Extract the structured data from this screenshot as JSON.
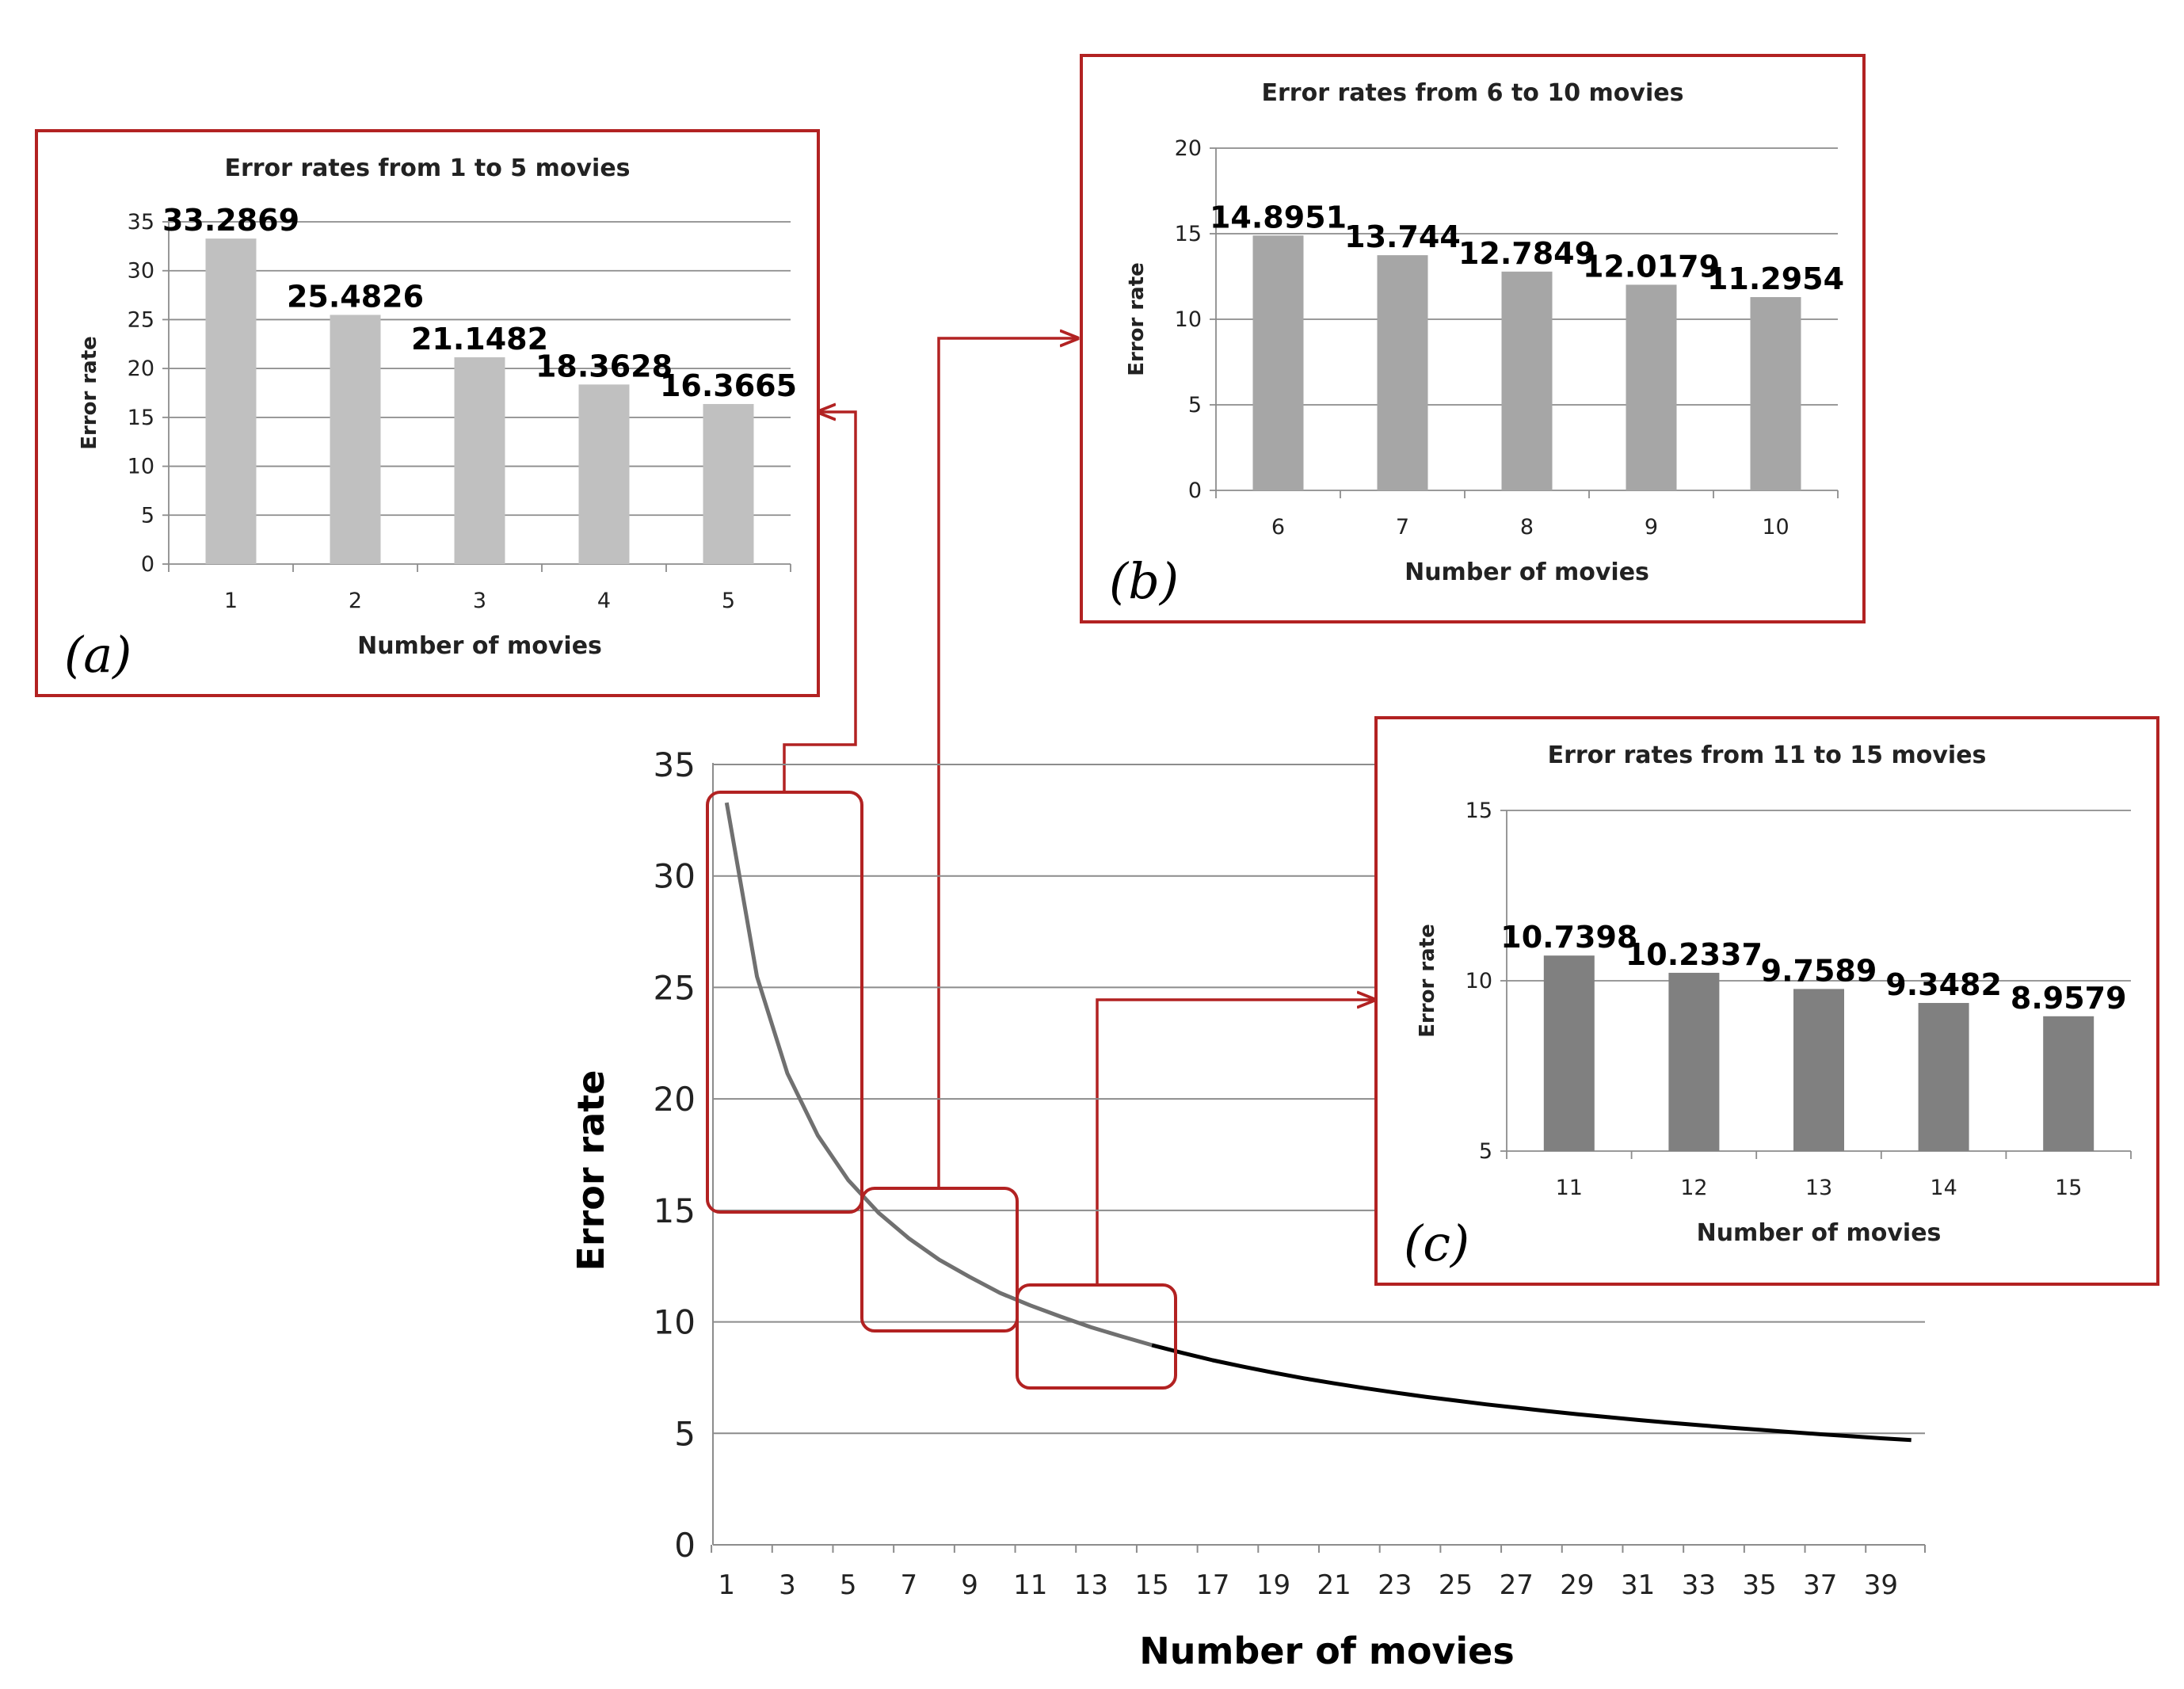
{
  "colors": {
    "frame": "#b22222",
    "bar_a": "#c0c0c0",
    "bar_b": "#a6a6a6",
    "bar_c": "#808080",
    "curve": "#000000",
    "grid": "#8c8c8c"
  },
  "chart_data": [
    {
      "id": "main",
      "type": "line",
      "title": "",
      "xlabel": "Number of movies",
      "ylabel": "Error rate",
      "ylim": [
        0,
        35
      ],
      "yticks": [
        0,
        5,
        10,
        15,
        20,
        25,
        30,
        35
      ],
      "xticks": [
        1,
        3,
        5,
        7,
        9,
        11,
        13,
        15,
        17,
        19,
        21,
        23,
        25,
        27,
        29,
        31,
        33,
        35,
        37,
        39
      ],
      "x": [
        1,
        2,
        3,
        4,
        5,
        6,
        7,
        8,
        9,
        10,
        11,
        12,
        13,
        14,
        15,
        16,
        17,
        18,
        19,
        20,
        21,
        22,
        23,
        24,
        25,
        26,
        27,
        28,
        29,
        30,
        31,
        32,
        33,
        34,
        35,
        36,
        37,
        38,
        39,
        40
      ],
      "series": [
        {
          "name": "Error rate",
          "values": [
            33.2869,
            25.4826,
            21.1482,
            18.3628,
            16.3665,
            14.8951,
            13.744,
            12.7849,
            12.0179,
            11.2954,
            10.7398,
            10.2337,
            9.7589,
            9.3482,
            8.9579,
            8.61,
            8.28,
            7.99,
            7.72,
            7.47,
            7.24,
            7.03,
            6.83,
            6.64,
            6.47,
            6.3,
            6.15,
            6.0,
            5.86,
            5.73,
            5.6,
            5.48,
            5.37,
            5.26,
            5.16,
            5.06,
            4.96,
            4.87,
            4.78,
            4.7
          ]
        }
      ],
      "grid": true
    },
    {
      "id": "a",
      "type": "bar",
      "panel_label": "(a)",
      "title": "Error rates from 1 to 5 movies",
      "xlabel": "Number of movies",
      "ylabel": "Error rate",
      "categories": [
        "1",
        "2",
        "3",
        "4",
        "5"
      ],
      "values": [
        33.2869,
        25.4826,
        21.1482,
        18.3628,
        16.3665
      ],
      "value_labels": [
        "33.2869",
        "25.4826",
        "21.1482",
        "18.3628",
        "16.3665"
      ],
      "ylim": [
        0,
        35
      ],
      "yticks": [
        0,
        5,
        10,
        15,
        20,
        25,
        30,
        35
      ],
      "grid": true
    },
    {
      "id": "b",
      "type": "bar",
      "panel_label": "(b)",
      "title": "Error rates from 6 to 10 movies",
      "xlabel": "Number of movies",
      "ylabel": "Error rate",
      "categories": [
        "6",
        "7",
        "8",
        "9",
        "10"
      ],
      "values": [
        14.8951,
        13.744,
        12.7849,
        12.0179,
        11.2954
      ],
      "value_labels": [
        "14.8951",
        "13.744",
        "12.7849",
        "12.0179",
        "11.2954"
      ],
      "ylim": [
        0,
        20
      ],
      "yticks": [
        0,
        5,
        10,
        15,
        20
      ],
      "grid": true
    },
    {
      "id": "c",
      "type": "bar",
      "panel_label": "(c)",
      "title": "Error rates from 11 to 15 movies",
      "xlabel": "Number of movies",
      "ylabel": "Error rate",
      "categories": [
        "11",
        "12",
        "13",
        "14",
        "15"
      ],
      "values": [
        10.7398,
        10.2337,
        9.7589,
        9.3482,
        8.9579
      ],
      "value_labels": [
        "10.7398",
        "10.2337",
        "9.7589",
        "9.3482",
        "8.9579"
      ],
      "ylim": [
        5,
        15
      ],
      "yticks": [
        5,
        10,
        15
      ],
      "grid": true
    }
  ]
}
